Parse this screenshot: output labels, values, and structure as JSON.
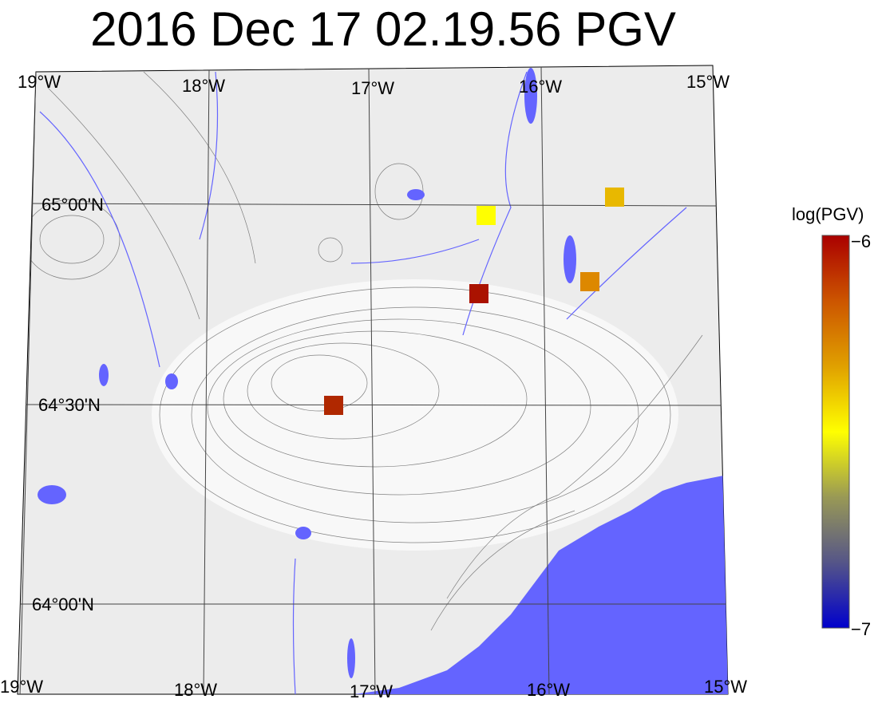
{
  "title": "2016 Dec 17 02.19.56 PGV",
  "map": {
    "top_lon_labels": [
      "19°W",
      "18°W",
      "17°W",
      "16°W",
      "15°W"
    ],
    "bottom_lon_labels": [
      "19°W",
      "18°W",
      "17°W",
      "16°W",
      "15°W"
    ],
    "lat_labels": [
      "65°00'N",
      "64°30'N",
      "64°00'N"
    ],
    "colors": {
      "land": "#ececec",
      "water": "#6464ff",
      "contour": "#333333",
      "grid": "#444444"
    },
    "stations": [
      {
        "color": "#ffff00",
        "log_pgv": -6.35
      },
      {
        "color": "#e8b800",
        "log_pgv": -6.25
      },
      {
        "color": "#aa1200",
        "log_pgv": -6.0
      },
      {
        "color": "#dd8800",
        "log_pgv": -6.15
      },
      {
        "color": "#b02800",
        "log_pgv": -6.03
      }
    ]
  },
  "colorbar": {
    "label": "log(PGV)",
    "max_label": "−6",
    "min_label": "−7",
    "range": [
      -7,
      -6
    ],
    "stops": [
      "#0000cc",
      "#555588",
      "#999955",
      "#ffff00",
      "#e0a000",
      "#cc5500",
      "#aa0000"
    ]
  }
}
